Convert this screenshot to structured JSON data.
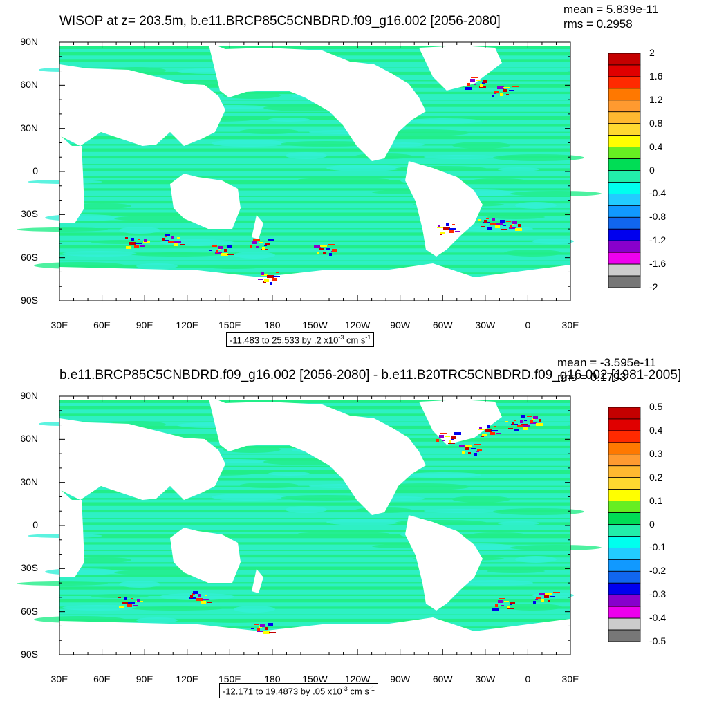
{
  "panels": [
    {
      "title": "WISOP at z= 203.5m, b.e11.BRCP85C5CNBDRD.f09_g16.002 [2056-2080]",
      "mean": "mean = 5.839e-11",
      "rms": "rms = 0.2958",
      "range_prefix": "-11.483 to 25.533 by .2 x10",
      "range_exp": "-3",
      "range_unit": " cm s",
      "range_unit_exp": "-1",
      "colorbar_labels": [
        "2",
        "1.6",
        "1.2",
        "0.8",
        "0.4",
        "0",
        "-0.4",
        "-0.8",
        "-1.2",
        "-1.6",
        "-2"
      ]
    },
    {
      "title": "b.e11.BRCP85C5CNBDRD.f09_g16.002 [2056-2080] - b.e11.B20TRC5CNBDRD.f09_g16.002 [1981-2005]",
      "mean": "mean = -3.595e-11",
      "rms": "rms = 0.1793",
      "range_prefix": "-12.171 to 19.4873 by .05 x10",
      "range_exp": "-3",
      "range_unit": " cm s",
      "range_unit_exp": "-1",
      "colorbar_labels": [
        "0.5",
        "0.4",
        "0.3",
        "0.2",
        "0.1",
        "0",
        "-0.1",
        "-0.2",
        "-0.3",
        "-0.4",
        "-0.5"
      ]
    }
  ],
  "y_labels": [
    "90N",
    "60N",
    "30N",
    "0",
    "30S",
    "60S",
    "90S"
  ],
  "x_labels": [
    "30E",
    "60E",
    "90E",
    "120E",
    "150E",
    "180",
    "150W",
    "120W",
    "90W",
    "60W",
    "30W",
    "0",
    "30E"
  ],
  "colorbar_colors": [
    "#c40000",
    "#e00000",
    "#ff2a00",
    "#ff7800",
    "#ff9a30",
    "#ffb830",
    "#ffd830",
    "#ffff00",
    "#66ee22",
    "#00dd55",
    "#22eeaa",
    "#00ffee",
    "#22ccff",
    "#1199ff",
    "#1166ee",
    "#0000ee",
    "#8800cc",
    "#ee00ee",
    "#cccccc",
    "#777777"
  ],
  "map_colors": {
    "ocean_base": "#22ee88",
    "ocean_light": "#33f0d8",
    "land": "#ffffff"
  }
}
